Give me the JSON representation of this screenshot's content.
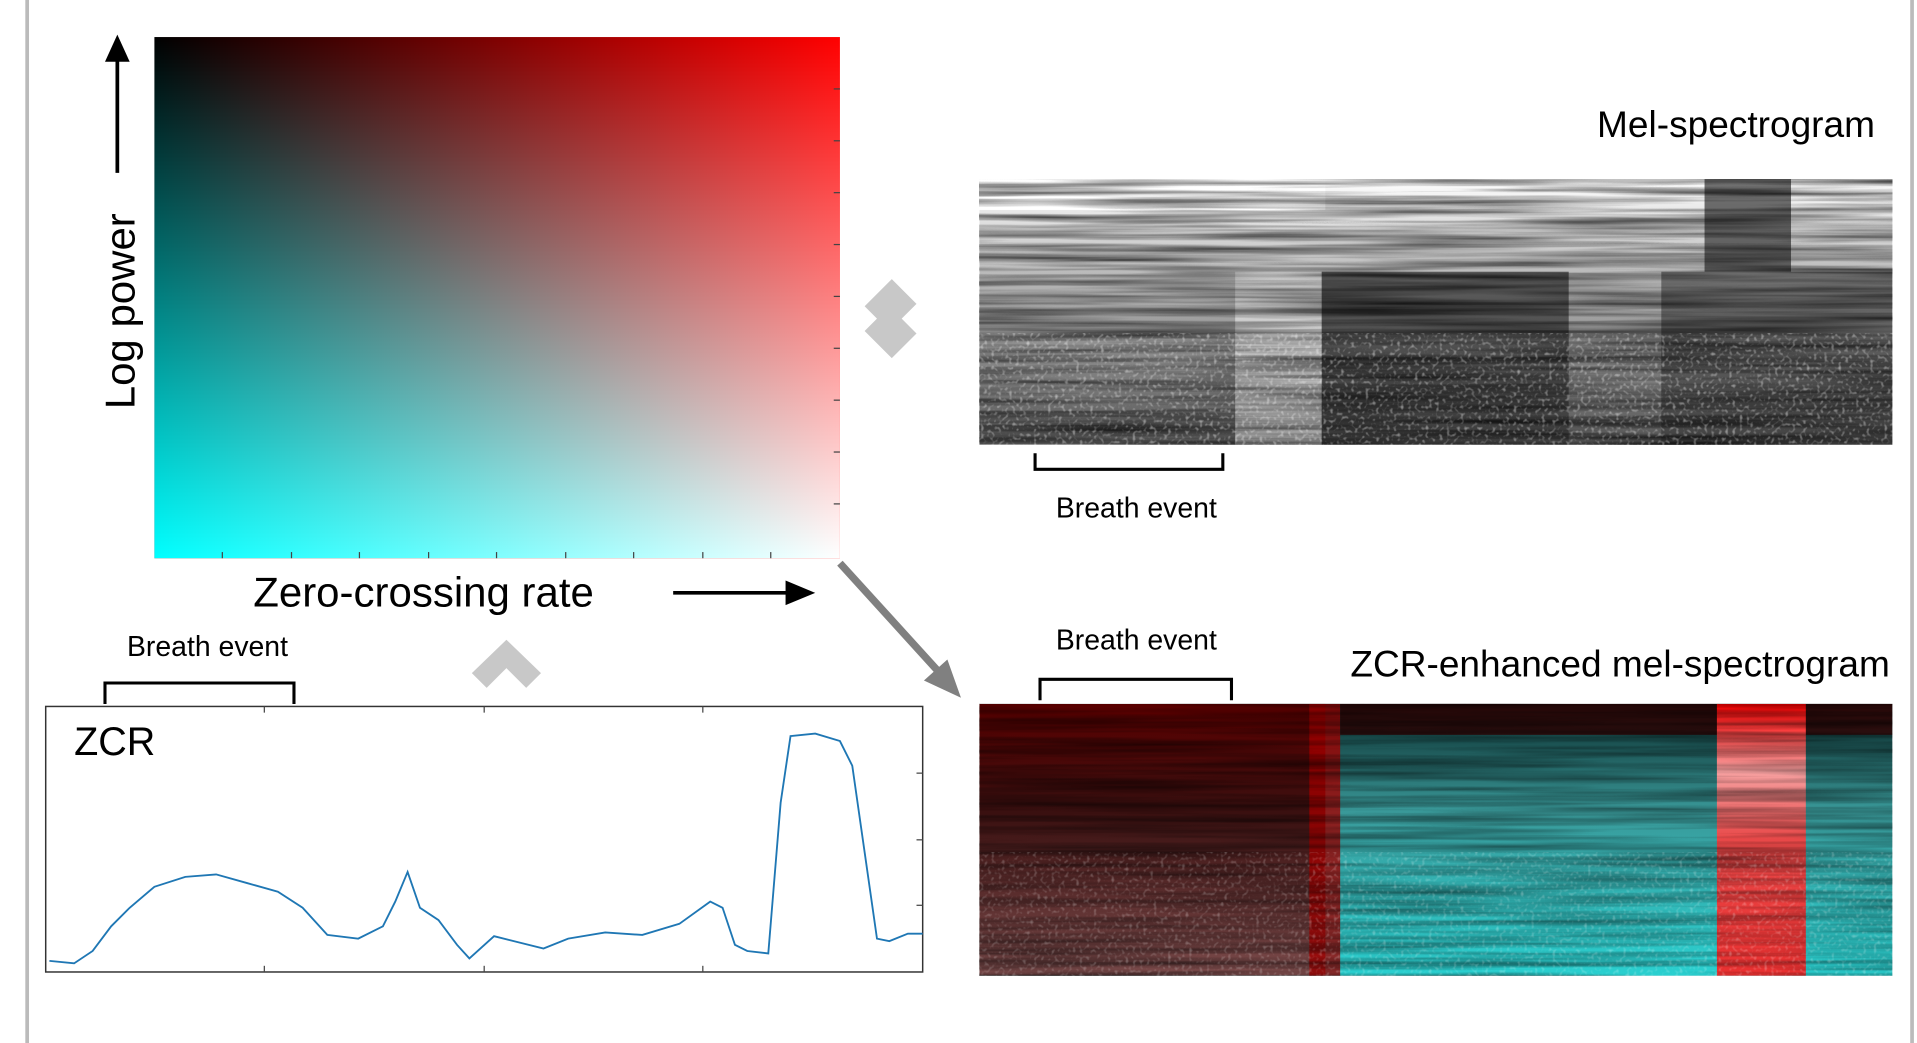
{
  "colormap": {
    "y_label": "Log power",
    "x_label": "Zero-crossing rate"
  },
  "mel_spectrogram": {
    "title": "Mel-spectrogram",
    "annotation": "Breath event"
  },
  "zcr_enhanced": {
    "title": "ZCR-enhanced mel-spectrogram",
    "annotation": "Breath event"
  },
  "zcr_plot": {
    "title": "ZCR",
    "annotation": "Breath event"
  }
}
